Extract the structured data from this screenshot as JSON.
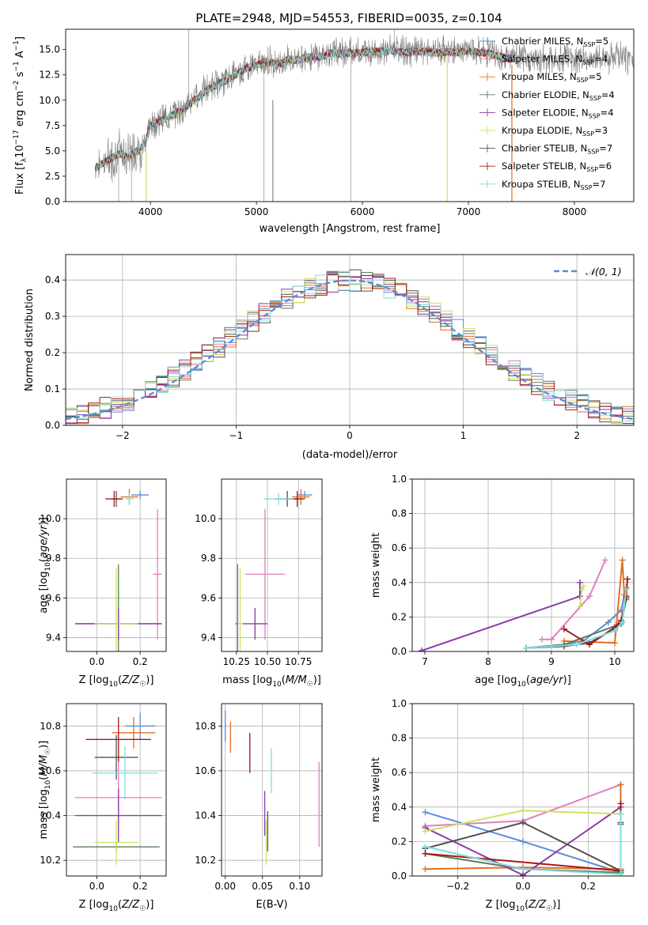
{
  "figure": {
    "title": "PLATE=2948, MJD=54553, FIBERID=0035, z=0.104"
  },
  "colors": {
    "Chabrier MILES": "#5b8dd6",
    "Salpeter MILES": "#df80c0",
    "Kroupa MILES": "#e2701f",
    "Chabrier ELODIE": "#5d7c5d",
    "Salpeter ELODIE": "#8e3aa7",
    "Kroupa ELODIE": "#cbe35f",
    "Chabrier STELIB": "#505050",
    "Salpeter STELIB": "#a31a1a",
    "Kroupa STELIB": "#7fdde0",
    "data": "#808080",
    "normal": "#5b8dd6"
  },
  "chart_data": [
    {
      "id": "spectrum",
      "type": "line",
      "title": "PLATE=2948, MJD=54553, FIBERID=0035, z=0.104",
      "xlabel": "wavelength [Angstrom, rest frame]",
      "ylabel": "Flux [f_λ10^-17 erg cm^-2 s^-1 A^-1]",
      "xlim": [
        3200,
        8560
      ],
      "ylim": [
        0,
        17
      ],
      "xticks": [
        "4000",
        "5000",
        "6000",
        "7000",
        "8000"
      ],
      "yticks": [
        "0.0",
        "2.5",
        "5.0",
        "7.5",
        "10.0",
        "12.5",
        "15.0"
      ],
      "legend_position": "right",
      "legend": [
        {
          "name": "Chabrier MILES",
          "nssp": "5"
        },
        {
          "name": "Salpeter MILES",
          "nssp": "4"
        },
        {
          "name": "Kroupa MILES",
          "nssp": "5"
        },
        {
          "name": "Chabrier ELODIE",
          "nssp": "4"
        },
        {
          "name": "Salpeter ELODIE",
          "nssp": "4"
        },
        {
          "name": "Kroupa ELODIE",
          "nssp": "3"
        },
        {
          "name": "Chabrier STELIB",
          "nssp": "7"
        },
        {
          "name": "Salpeter STELIB",
          "nssp": "6"
        },
        {
          "name": "Kroupa STELIB",
          "nssp": "7"
        }
      ],
      "continuum": [
        [
          3480,
          3.4
        ],
        [
          3600,
          4.2
        ],
        [
          3700,
          4.8
        ],
        [
          3800,
          4.6
        ],
        [
          3900,
          5.2
        ],
        [
          3950,
          6.0
        ],
        [
          4000,
          7.6
        ],
        [
          4100,
          8.1
        ],
        [
          4200,
          8.6
        ],
        [
          4300,
          9.1
        ],
        [
          4400,
          10.0
        ],
        [
          4500,
          10.9
        ],
        [
          4600,
          11.5
        ],
        [
          4700,
          12.0
        ],
        [
          4800,
          12.6
        ],
        [
          4900,
          13.2
        ],
        [
          5000,
          13.6
        ],
        [
          5100,
          13.9
        ],
        [
          5200,
          13.6
        ],
        [
          5300,
          14.1
        ],
        [
          5400,
          14.1
        ],
        [
          5500,
          14.4
        ],
        [
          5600,
          14.4
        ],
        [
          5700,
          14.7
        ],
        [
          5800,
          14.7
        ],
        [
          5900,
          14.8
        ],
        [
          6000,
          14.8
        ],
        [
          6100,
          14.9
        ],
        [
          6200,
          14.9
        ],
        [
          6300,
          15.0
        ],
        [
          6400,
          14.8
        ],
        [
          6500,
          14.9
        ],
        [
          6600,
          14.9
        ],
        [
          6700,
          14.8
        ],
        [
          6800,
          14.9
        ],
        [
          6900,
          14.8
        ],
        [
          7000,
          15.0
        ],
        [
          7100,
          14.8
        ],
        [
          7200,
          14.7
        ],
        [
          7300,
          14.4
        ],
        [
          7400,
          14.2
        ],
        [
          7500,
          14.1
        ],
        [
          7600,
          14.0
        ],
        [
          7700,
          14.1
        ],
        [
          7800,
          14.0
        ],
        [
          7900,
          14.3
        ],
        [
          8000,
          14.1
        ],
        [
          8100,
          14.0
        ],
        [
          8200,
          14.2
        ],
        [
          8300,
          14.0
        ],
        [
          8400,
          14.3
        ],
        [
          8500,
          14.1
        ]
      ]
    },
    {
      "id": "residuals",
      "type": "line",
      "xlabel": "(data-model)/error",
      "ylabel": "Normed distribution",
      "xlim": [
        -2.5,
        2.5
      ],
      "ylim": [
        0,
        0.47
      ],
      "xticks": [
        "−2",
        "−1",
        "0",
        "1",
        "2"
      ],
      "yticks": [
        "0.0",
        "0.1",
        "0.2",
        "0.3",
        "0.4"
      ],
      "legend_position": "upper right",
      "legend": [
        "𝒩(0, 1)"
      ],
      "bins": [
        -2.5,
        -2.4,
        -2.3,
        -2.2,
        -2.1,
        -2.0,
        -1.9,
        -1.8,
        -1.7,
        -1.6,
        -1.5,
        -1.4,
        -1.3,
        -1.2,
        -1.1,
        -1.0,
        -0.9,
        -0.8,
        -0.7,
        -0.6,
        -0.5,
        -0.4,
        -0.3,
        -0.2,
        -0.1,
        0.0,
        0.1,
        0.2,
        0.3,
        0.4,
        0.5,
        0.6,
        0.7,
        0.8,
        0.9,
        1.0,
        1.1,
        1.2,
        1.3,
        1.4,
        1.5,
        1.6,
        1.7,
        1.8,
        1.9,
        2.0,
        2.1,
        2.2,
        2.3,
        2.4,
        2.5
      ]
    },
    {
      "id": "age-vs-z",
      "type": "scatter",
      "xlabel": "Z [log₁₀(Z/Z☉)]",
      "ylabel": "age  [log₁₀(age/yr)]",
      "xlim": [
        -0.14,
        0.32
      ],
      "ylim": [
        9.33,
        10.2
      ],
      "xticks": [
        "0.0",
        "0.2"
      ],
      "yticks": [
        "9.4",
        "9.6",
        "9.8",
        "10.0"
      ],
      "points": [
        {
          "model": "Chabrier MILES",
          "x": 0.2,
          "xerr": 0.04,
          "y": 10.12,
          "yerr": 0.02
        },
        {
          "model": "Salpeter MILES",
          "x": 0.28,
          "xerr": 0.02,
          "y": 9.72,
          "yerr": 0.33
        },
        {
          "model": "Kroupa MILES",
          "x": 0.15,
          "xerr": 0.04,
          "y": 10.11,
          "yerr": 0.04
        },
        {
          "model": "Chabrier ELODIE",
          "x": 0.1,
          "xerr": 0.2,
          "y": 9.47,
          "yerr": 0.3
        },
        {
          "model": "Salpeter ELODIE",
          "x": 0.1,
          "xerr": 0.2,
          "y": 9.47,
          "yerr": 0.08
        },
        {
          "model": "Kroupa ELODIE",
          "x": 0.09,
          "xerr": 0.1,
          "y": 9.47,
          "yerr": 0.28
        },
        {
          "model": "Chabrier STELIB",
          "x": 0.09,
          "xerr": 0.02,
          "y": 10.1,
          "yerr": 0.04
        },
        {
          "model": "Salpeter STELIB",
          "x": 0.08,
          "xerr": 0.04,
          "y": 10.1,
          "yerr": 0.04
        },
        {
          "model": "Kroupa STELIB",
          "x": 0.15,
          "xerr": 0.02,
          "y": 10.1,
          "yerr": 0.03
        }
      ]
    },
    {
      "id": "age-vs-mass",
      "type": "scatter",
      "xlabel": "mass [log₁₀(M/M☉)]",
      "ylabel": "",
      "xlim": [
        10.13,
        10.94
      ],
      "ylim": [
        9.33,
        10.2
      ],
      "xticks": [
        "10.25",
        "10.50",
        "10.75"
      ],
      "yticks": [
        "9.4",
        "9.6",
        "9.8",
        "10.0"
      ],
      "points": [
        {
          "model": "Chabrier MILES",
          "x": 10.8,
          "xerr": 0.06,
          "y": 10.12,
          "yerr": 0.02
        },
        {
          "model": "Salpeter MILES",
          "x": 10.48,
          "xerr": 0.16,
          "y": 9.72,
          "yerr": 0.33
        },
        {
          "model": "Kroupa MILES",
          "x": 10.77,
          "xerr": 0.07,
          "y": 10.11,
          "yerr": 0.04
        },
        {
          "model": "Chabrier ELODIE",
          "x": 10.26,
          "xerr": 0.02,
          "y": 9.47,
          "yerr": 0.3
        },
        {
          "model": "Salpeter ELODIE",
          "x": 10.4,
          "xerr": 0.1,
          "y": 9.47,
          "yerr": 0.08
        },
        {
          "model": "Kroupa ELODIE",
          "x": 10.28,
          "xerr": 0.02,
          "y": 9.47,
          "yerr": 0.28
        },
        {
          "model": "Chabrier STELIB",
          "x": 10.66,
          "xerr": 0.1,
          "y": 10.1,
          "yerr": 0.04
        },
        {
          "model": "Salpeter STELIB",
          "x": 10.74,
          "xerr": 0.06,
          "y": 10.1,
          "yerr": 0.04
        },
        {
          "model": "Kroupa STELIB",
          "x": 10.59,
          "xerr": 0.12,
          "y": 10.1,
          "yerr": 0.03
        }
      ]
    },
    {
      "id": "massweight-vs-age",
      "type": "line",
      "xlabel": "age  [log₁₀(age/yr)]",
      "ylabel": "mass weight",
      "xlim": [
        6.8,
        10.3
      ],
      "ylim": [
        0,
        1.0
      ],
      "xticks": [
        "7",
        "8",
        "9",
        "10"
      ],
      "yticks": [
        "0.0",
        "0.2",
        "0.4",
        "0.6",
        "0.8",
        "1.0"
      ],
      "series": [
        {
          "model": "Chabrier MILES",
          "x": [
            8.6,
            9.2,
            9.5,
            9.9,
            10.1,
            10.18
          ],
          "y": [
            0.02,
            0.04,
            0.06,
            0.17,
            0.24,
            0.37
          ]
        },
        {
          "model": "Salpeter MILES",
          "x": [
            8.85,
            9.0,
            9.6,
            9.85
          ],
          "y": [
            0.07,
            0.07,
            0.32,
            0.53
          ]
        },
        {
          "model": "Kroupa MILES",
          "x": [
            9.2,
            10.0,
            10.12,
            10.15
          ],
          "y": [
            0.06,
            0.05,
            0.53,
            0.33
          ]
        },
        {
          "model": "Chabrier ELODIE",
          "x": [
            8.6,
            9.2,
            10.1,
            10.18
          ],
          "y": [
            0.02,
            0.04,
            0.16,
            0.3
          ]
        },
        {
          "model": "Salpeter ELODIE",
          "x": [
            6.95,
            9.45,
            9.45
          ],
          "y": [
            0.005,
            0.32,
            0.4
          ]
        },
        {
          "model": "Kroupa ELODIE",
          "x": [
            9.45,
            9.48,
            9.5
          ],
          "y": [
            0.26,
            0.36,
            0.38
          ]
        },
        {
          "model": "Chabrier STELIB",
          "x": [
            8.6,
            9.2,
            9.6,
            10.0,
            10.1,
            10.18
          ],
          "y": [
            0.02,
            0.03,
            0.05,
            0.13,
            0.17,
            0.31
          ]
        },
        {
          "model": "Salpeter STELIB",
          "x": [
            9.2,
            9.6,
            10.0,
            10.1,
            10.18,
            10.2
          ],
          "y": [
            0.13,
            0.04,
            0.14,
            0.18,
            0.32,
            0.42
          ]
        },
        {
          "model": "Kroupa STELIB",
          "x": [
            8.6,
            9.0,
            9.4,
            10.0,
            10.12,
            10.18
          ],
          "y": [
            0.02,
            0.03,
            0.04,
            0.12,
            0.17,
            0.36
          ]
        }
      ]
    },
    {
      "id": "mass-vs-z",
      "type": "scatter",
      "xlabel": "Z [log₁₀(Z/Z☉)]",
      "ylabel": "mass [log₁₀(M/M☉)]",
      "xlim": [
        -0.14,
        0.32
      ],
      "ylim": [
        10.13,
        10.9
      ],
      "xticks": [
        "0.0",
        "0.2"
      ],
      "yticks": [
        "10.2",
        "10.4",
        "10.6",
        "10.8"
      ],
      "points": [
        {
          "model": "Chabrier MILES",
          "x": 0.2,
          "xerr": 0.07,
          "y": 10.8,
          "yerr": 0.06
        },
        {
          "model": "Salpeter MILES",
          "x": 0.1,
          "xerr": 0.2,
          "y": 10.48,
          "yerr": 0.16
        },
        {
          "model": "Kroupa MILES",
          "x": 0.17,
          "xerr": 0.1,
          "y": 10.77,
          "yerr": 0.07
        },
        {
          "model": "Chabrier ELODIE",
          "x": 0.09,
          "xerr": 0.2,
          "y": 10.26,
          "yerr": 0.02
        },
        {
          "model": "Salpeter ELODIE",
          "x": 0.1,
          "xerr": 0.2,
          "y": 10.4,
          "yerr": 0.12
        },
        {
          "model": "Kroupa ELODIE",
          "x": 0.09,
          "xerr": 0.1,
          "y": 10.28,
          "yerr": 0.1
        },
        {
          "model": "Chabrier STELIB",
          "x": 0.09,
          "xerr": 0.1,
          "y": 10.66,
          "yerr": 0.1
        },
        {
          "model": "Salpeter STELIB",
          "x": 0.1,
          "xerr": 0.15,
          "y": 10.74,
          "yerr": 0.1
        },
        {
          "model": "Kroupa STELIB",
          "x": 0.13,
          "xerr": 0.15,
          "y": 10.59,
          "yerr": 0.12
        }
      ]
    },
    {
      "id": "mass-vs-ebv",
      "type": "scatter",
      "xlabel": "E(B-V)",
      "ylabel": "",
      "xlim": [
        -0.005,
        0.13
      ],
      "ylim": [
        10.13,
        10.9
      ],
      "xticks": [
        "0.00",
        "0.05",
        "0.10"
      ],
      "yticks": [
        "10.2",
        "10.4",
        "10.6",
        "10.8"
      ],
      "points": [
        {
          "model": "Chabrier MILES",
          "x": 0.0,
          "yerr": 0.07,
          "y": 10.8
        },
        {
          "model": "Kroupa MILES",
          "x": 0.007,
          "yerr": 0.07,
          "y": 10.75
        },
        {
          "model": "Salpeter STELIB",
          "x": 0.033,
          "yerr": 0.09,
          "y": 10.68
        },
        {
          "model": "Kroupa STELIB",
          "x": 0.062,
          "yerr": 0.1,
          "y": 10.6
        },
        {
          "model": "Salpeter ELODIE",
          "x": 0.053,
          "yerr": 0.1,
          "y": 10.41
        },
        {
          "model": "Kroupa ELODIE",
          "x": 0.055,
          "yerr": 0.1,
          "y": 10.28
        },
        {
          "model": "Chabrier STELIB",
          "x": 0.057,
          "yerr": 0.09,
          "y": 10.33
        },
        {
          "model": "Salpeter MILES",
          "x": 0.126,
          "yerr": 0.19,
          "y": 10.45
        }
      ]
    },
    {
      "id": "massweight-vs-z",
      "type": "line",
      "xlabel": "Z [log₁₀(Z/Z☉)]",
      "ylabel": "mass weight",
      "xlim": [
        -0.34,
        0.34
      ],
      "ylim": [
        0,
        1.0
      ],
      "xticks": [
        "−0.2",
        "0.0",
        "0.2"
      ],
      "yticks": [
        "0.0",
        "0.2",
        "0.4",
        "0.6",
        "0.8",
        "1.0"
      ],
      "series": [
        {
          "model": "Chabrier MILES",
          "x": [
            -0.3,
            0.0,
            0.3,
            0.3
          ],
          "y": [
            0.37,
            0.2,
            0.02,
            0.3
          ]
        },
        {
          "model": "Salpeter MILES",
          "x": [
            -0.3,
            0.0,
            0.3
          ],
          "y": [
            0.29,
            0.32,
            0.53
          ]
        },
        {
          "model": "Kroupa MILES",
          "x": [
            -0.3,
            0.0,
            0.3,
            0.3
          ],
          "y": [
            0.04,
            0.05,
            0.04,
            0.53
          ]
        },
        {
          "model": "Chabrier ELODIE",
          "x": [
            -0.3,
            0.0,
            0.3,
            0.3
          ],
          "y": [
            0.13,
            0.04,
            0.02,
            0.3
          ]
        },
        {
          "model": "Salpeter ELODIE",
          "x": [
            -0.3,
            0.0,
            0.3
          ],
          "y": [
            0.28,
            0.005,
            0.4
          ]
        },
        {
          "model": "Kroupa ELODIE",
          "x": [
            -0.3,
            0.0,
            0.3
          ],
          "y": [
            0.26,
            0.38,
            0.36
          ]
        },
        {
          "model": "Chabrier STELIB",
          "x": [
            -0.3,
            0.0,
            0.3,
            0.3
          ],
          "y": [
            0.16,
            0.31,
            0.03,
            0.31
          ]
        },
        {
          "model": "Salpeter STELIB",
          "x": [
            -0.3,
            0.3,
            0.3
          ],
          "y": [
            0.13,
            0.03,
            0.42
          ]
        },
        {
          "model": "Kroupa STELIB",
          "x": [
            -0.3,
            0.0,
            0.3,
            0.3
          ],
          "y": [
            0.17,
            0.04,
            0.01,
            0.36
          ]
        }
      ]
    }
  ]
}
